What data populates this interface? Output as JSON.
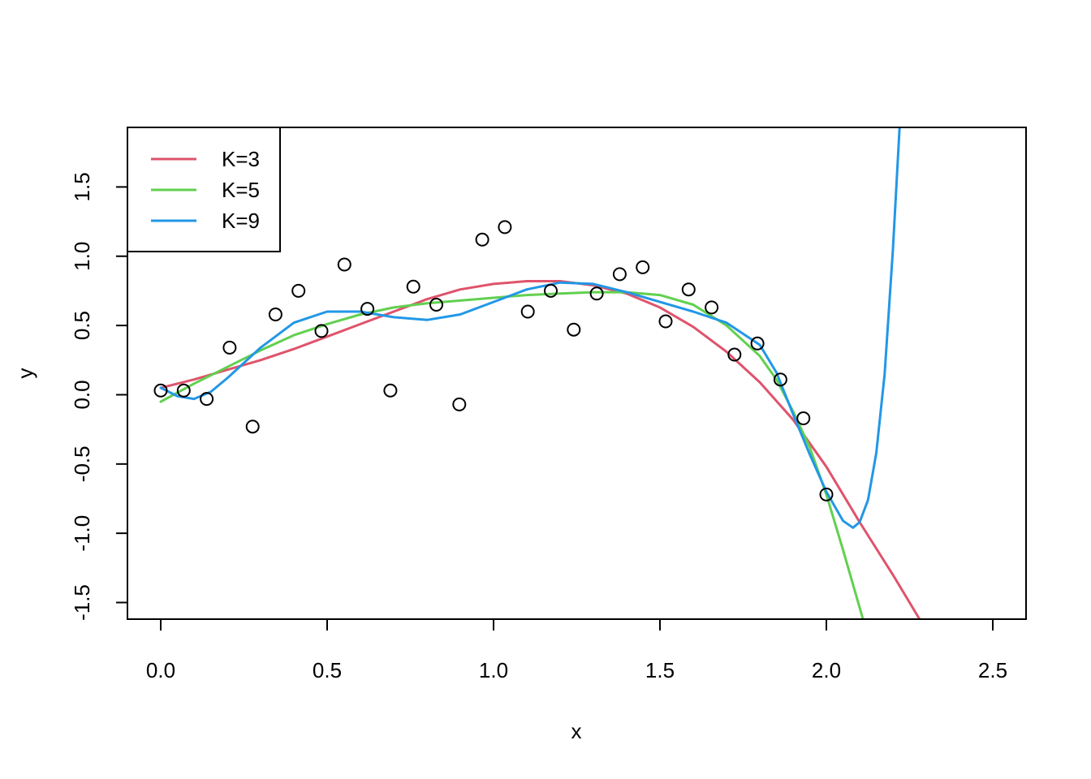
{
  "chart_data": {
    "type": "scatter",
    "title": "",
    "xlabel": "x",
    "ylabel": "y",
    "xlim": [
      -0.1,
      2.6
    ],
    "ylim": [
      -1.62,
      1.93
    ],
    "grid": false,
    "legend_position": "top-left",
    "x_ticks": [
      "0.0",
      "0.5",
      "1.0",
      "1.5",
      "2.0",
      "2.5"
    ],
    "y_ticks": [
      "-1.5",
      "-1.0",
      "-0.5",
      "0.0",
      "0.5",
      "1.0",
      "1.5"
    ],
    "points": {
      "x": [
        0.0,
        0.069,
        0.138,
        0.207,
        0.276,
        0.345,
        0.414,
        0.483,
        0.552,
        0.621,
        0.69,
        0.759,
        0.828,
        0.897,
        0.966,
        1.034,
        1.103,
        1.172,
        1.241,
        1.31,
        1.379,
        1.448,
        1.517,
        1.586,
        1.655,
        1.724,
        1.793,
        1.862,
        1.931,
        2.0
      ],
      "y": [
        0.03,
        0.03,
        -0.03,
        0.34,
        -0.23,
        0.58,
        0.75,
        0.46,
        0.94,
        0.62,
        0.03,
        0.78,
        0.65,
        -0.07,
        1.12,
        1.21,
        0.6,
        0.75,
        0.47,
        0.73,
        0.87,
        0.92,
        0.53,
        0.76,
        0.63,
        0.29,
        0.37,
        0.11,
        -0.17,
        -0.72
      ]
    },
    "series": [
      {
        "name": "K=3",
        "color": "#DF536B",
        "x": [
          0.0,
          0.1,
          0.2,
          0.3,
          0.4,
          0.5,
          0.6,
          0.7,
          0.8,
          0.9,
          1.0,
          1.1,
          1.2,
          1.3,
          1.4,
          1.5,
          1.6,
          1.7,
          1.8,
          1.9,
          2.0,
          2.1,
          2.2,
          2.28
        ],
        "y": [
          0.05,
          0.11,
          0.18,
          0.25,
          0.33,
          0.42,
          0.51,
          0.6,
          0.69,
          0.76,
          0.8,
          0.82,
          0.82,
          0.79,
          0.73,
          0.63,
          0.49,
          0.31,
          0.09,
          -0.18,
          -0.52,
          -0.92,
          -1.3,
          -1.62
        ]
      },
      {
        "name": "K=5",
        "color": "#61D04F",
        "x": [
          0.0,
          0.1,
          0.2,
          0.3,
          0.4,
          0.5,
          0.6,
          0.7,
          0.8,
          0.9,
          1.0,
          1.1,
          1.2,
          1.3,
          1.4,
          1.5,
          1.6,
          1.7,
          1.8,
          1.85,
          1.9,
          1.95,
          2.0,
          2.05,
          2.11
        ],
        "y": [
          -0.05,
          0.08,
          0.2,
          0.32,
          0.43,
          0.51,
          0.58,
          0.63,
          0.66,
          0.68,
          0.7,
          0.72,
          0.73,
          0.74,
          0.74,
          0.72,
          0.65,
          0.5,
          0.28,
          0.11,
          -0.12,
          -0.38,
          -0.72,
          -1.12,
          -1.62
        ]
      },
      {
        "name": "K=9",
        "color": "#2297E6",
        "x": [
          0.0,
          0.05,
          0.1,
          0.15,
          0.2,
          0.3,
          0.4,
          0.5,
          0.6,
          0.7,
          0.8,
          0.9,
          1.0,
          1.1,
          1.2,
          1.3,
          1.4,
          1.5,
          1.6,
          1.7,
          1.8,
          1.85,
          1.9,
          1.95,
          2.0,
          2.05,
          2.08,
          2.1,
          2.125,
          2.15,
          2.175,
          2.2,
          2.22
        ],
        "y": [
          0.05,
          -0.01,
          -0.03,
          0.02,
          0.12,
          0.34,
          0.52,
          0.6,
          0.6,
          0.56,
          0.54,
          0.58,
          0.67,
          0.76,
          0.81,
          0.8,
          0.74,
          0.67,
          0.6,
          0.52,
          0.36,
          0.16,
          -0.14,
          -0.43,
          -0.7,
          -0.91,
          -0.96,
          -0.92,
          -0.76,
          -0.42,
          0.15,
          1.05,
          1.93
        ]
      }
    ]
  }
}
